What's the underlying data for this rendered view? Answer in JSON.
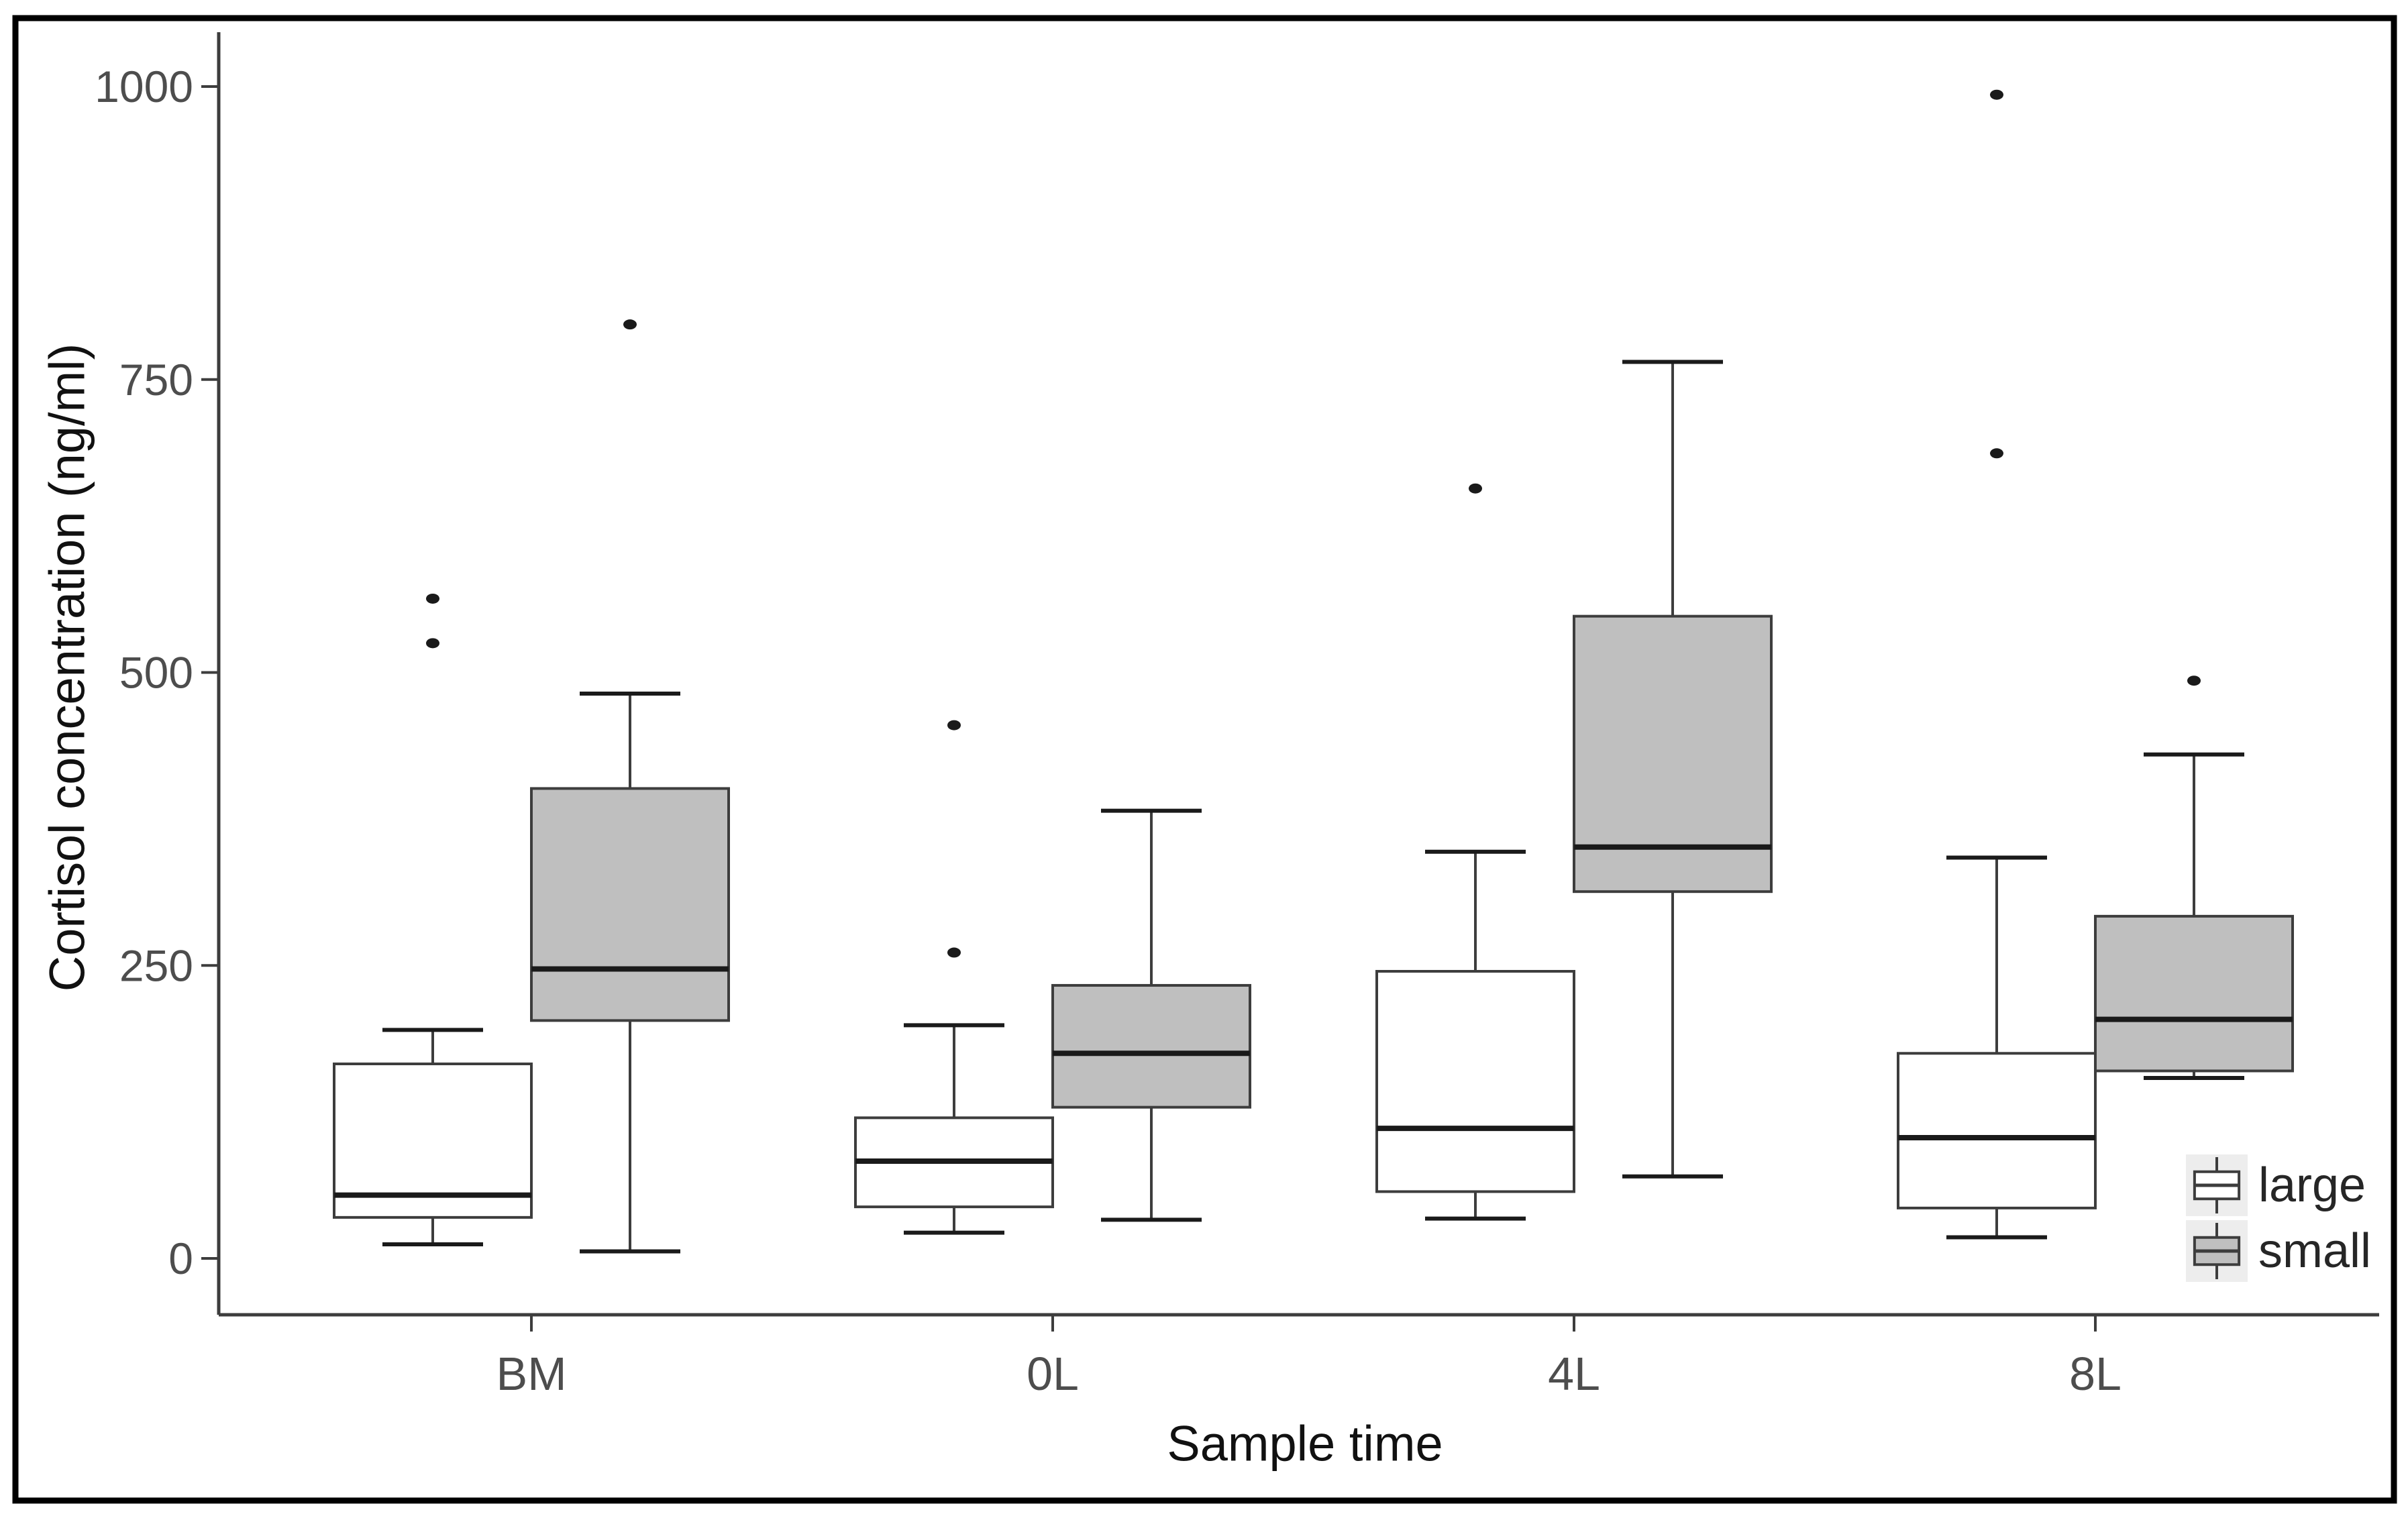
{
  "figure": {
    "background": "#ffffff",
    "border_color": "#000000",
    "y_axis": {
      "label": "Cortisol concentration (ng/ml)",
      "tick_labels": [
        "0",
        "250",
        "500",
        "750",
        "1000"
      ],
      "tick_values": [
        0,
        250,
        500,
        750,
        1000
      ],
      "range": [
        0,
        1000
      ]
    },
    "x_axis": {
      "label": "Sample time",
      "categories": [
        "BM",
        "0L",
        "4L",
        "8L"
      ]
    },
    "legend": {
      "items": [
        {
          "label": "large",
          "fill": "#ffffff"
        },
        {
          "label": "small",
          "fill": "#bfbfbf"
        }
      ],
      "key_background": "#ededed",
      "position": "bottom-right-inside"
    },
    "colors": {
      "large_fill": "#ffffff",
      "small_fill": "#bfbfbf",
      "stroke": "#3d3d3d",
      "median": "#1a1a1a",
      "tick_text": "#4d4d4d",
      "title_text": "#111111",
      "outlier": "#1a1a1a"
    }
  },
  "chart_data": {
    "type": "boxplot",
    "title": "",
    "xlabel": "Sample time",
    "ylabel": "Cortisol concentration (ng/ml)",
    "ylim": [
      0,
      1000
    ],
    "yticks": [
      0,
      250,
      500,
      750,
      1000
    ],
    "grid": false,
    "legend_position": "bottom-right-inside",
    "categories": [
      "BM",
      "0L",
      "4L",
      "8L"
    ],
    "series": [
      {
        "name": "large",
        "fill": "#ffffff",
        "boxes": [
          {
            "category": "BM",
            "whisker_low": 12,
            "q1": 35,
            "median": 54,
            "q3": 166,
            "whisker_high": 195,
            "outliers": [
              563,
              525
            ]
          },
          {
            "category": "0L",
            "whisker_low": 22,
            "q1": 44,
            "median": 83,
            "q3": 120,
            "whisker_high": 199,
            "outliers": [
              455,
              261
            ]
          },
          {
            "category": "4L",
            "whisker_low": 34,
            "q1": 57,
            "median": 111,
            "q3": 245,
            "whisker_high": 347,
            "outliers": [
              657
            ]
          },
          {
            "category": "8L",
            "whisker_low": 18,
            "q1": 43,
            "median": 103,
            "q3": 175,
            "whisker_high": 342,
            "outliers": [
              993,
              687
            ]
          }
        ]
      },
      {
        "name": "small",
        "fill": "#bfbfbf",
        "boxes": [
          {
            "category": "BM",
            "whisker_low": 6,
            "q1": 203,
            "median": 247,
            "q3": 401,
            "whisker_high": 482,
            "outliers": [
              797
            ]
          },
          {
            "category": "0L",
            "whisker_low": 33,
            "q1": 129,
            "median": 175,
            "q3": 233,
            "whisker_high": 382,
            "outliers": []
          },
          {
            "category": "4L",
            "whisker_low": 70,
            "q1": 313,
            "median": 351,
            "q3": 548,
            "whisker_high": 765,
            "outliers": []
          },
          {
            "category": "8L",
            "whisker_low": 154,
            "q1": 160,
            "median": 204,
            "q3": 292,
            "whisker_high": 430,
            "outliers": [
              493
            ]
          }
        ]
      }
    ]
  }
}
